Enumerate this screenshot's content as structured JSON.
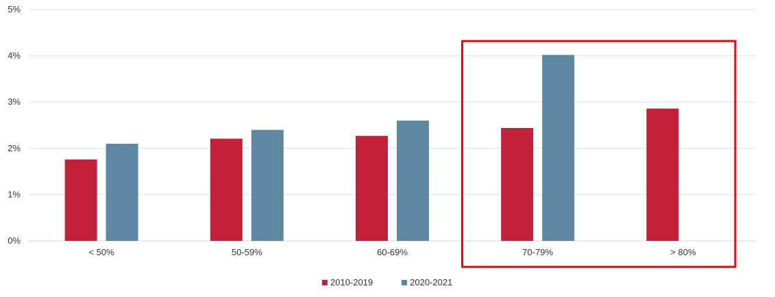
{
  "chart_data": {
    "type": "bar",
    "categories": [
      "< 50%",
      "50-59%",
      "60-69%",
      "70-79%",
      "> 80%"
    ],
    "series": [
      {
        "name": "2010-2019",
        "color": "#c32039",
        "values": [
          1.76,
          2.21,
          2.27,
          2.44,
          2.86
        ]
      },
      {
        "name": "2020-2021",
        "color": "#5e87a1",
        "values": [
          2.1,
          2.4,
          2.6,
          4.02,
          null
        ]
      }
    ],
    "title": "",
    "xlabel": "",
    "ylabel": "",
    "ylim": [
      0,
      5
    ],
    "yticks": [
      "0%",
      "1%",
      "2%",
      "3%",
      "4%",
      "5%"
    ],
    "grid": true,
    "legend_position": "bottom-center",
    "highlight": {
      "categories": [
        "70-79%",
        "> 80%"
      ],
      "color": "#e8000b"
    }
  }
}
